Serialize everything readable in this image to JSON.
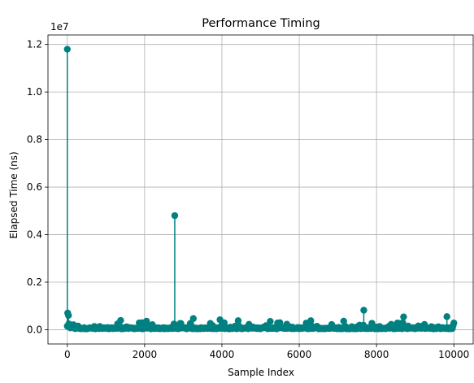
{
  "chart_data": {
    "type": "scatter",
    "style": "stem",
    "title": "Performance Timing",
    "xlabel": "Sample Index",
    "ylabel": "Elapsed Time (ns)",
    "y_offset_text": "1e7",
    "xlim": [
      -500,
      10500
    ],
    "ylim": [
      -0.06,
      1.24
    ],
    "y_scale": 10000000,
    "xticks": [
      0,
      2000,
      4000,
      6000,
      8000,
      10000
    ],
    "xtick_labels": [
      "0",
      "2000",
      "4000",
      "6000",
      "8000",
      "10000"
    ],
    "yticks": [
      0.0,
      0.2,
      0.4,
      0.6,
      0.8,
      1.0,
      1.2
    ],
    "ytick_labels": [
      "0.0",
      "0.2",
      "0.4",
      "0.6",
      "0.8",
      "1.0",
      "1.2"
    ],
    "grid": true,
    "color": "#008080",
    "n_samples": 10000,
    "baseline_typical": 60000,
    "spikes": [
      {
        "x": 0,
        "y": 11800000
      },
      {
        "x": 10,
        "y": 700000
      },
      {
        "x": 30,
        "y": 600000
      },
      {
        "x": 2780,
        "y": 4800000
      },
      {
        "x": 7670,
        "y": 820000
      },
      {
        "x": 8700,
        "y": 540000
      },
      {
        "x": 9820,
        "y": 550000
      },
      {
        "x": 3260,
        "y": 470000
      },
      {
        "x": 1380,
        "y": 390000
      },
      {
        "x": 2050,
        "y": 360000
      },
      {
        "x": 3950,
        "y": 420000
      },
      {
        "x": 4420,
        "y": 380000
      },
      {
        "x": 5250,
        "y": 350000
      },
      {
        "x": 6300,
        "y": 380000
      },
      {
        "x": 7150,
        "y": 360000
      }
    ]
  }
}
